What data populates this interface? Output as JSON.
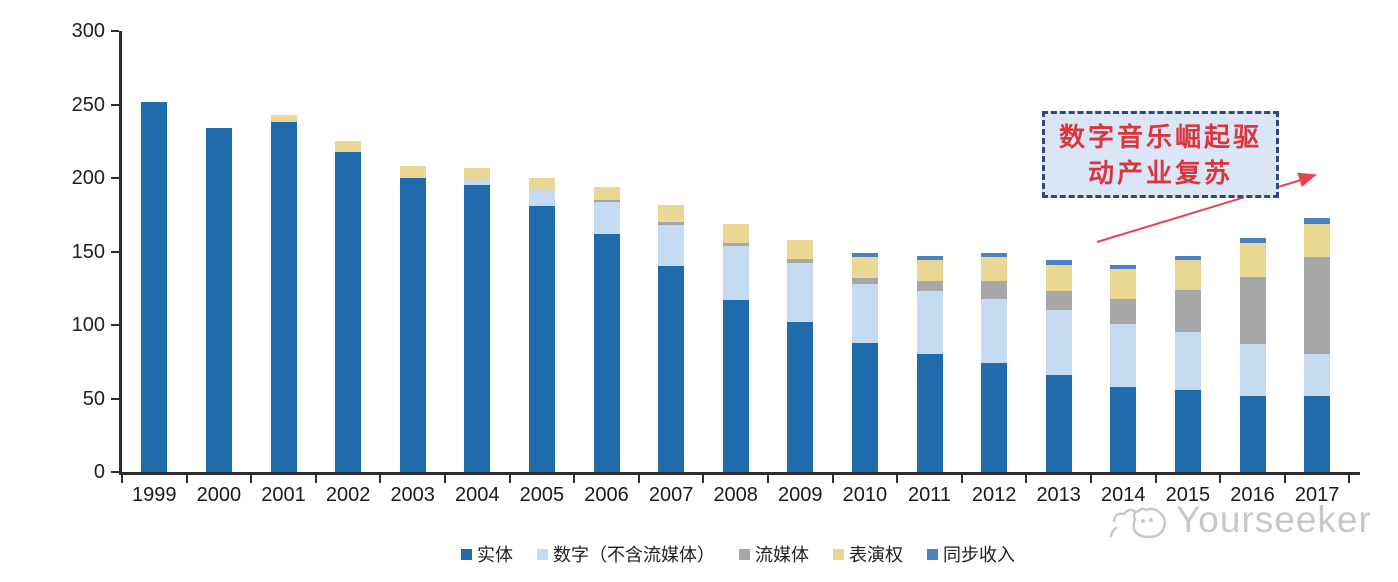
{
  "chart_data": {
    "type": "bar",
    "stacked": true,
    "title": "",
    "xlabel": "",
    "ylabel": "",
    "ylim": [
      0,
      300
    ],
    "yticks": [
      0,
      50,
      100,
      150,
      200,
      250,
      300
    ],
    "grid": false,
    "legend_position": "bottom",
    "categories": [
      "1999",
      "2000",
      "2001",
      "2002",
      "2003",
      "2004",
      "2005",
      "2006",
      "2007",
      "2008",
      "2009",
      "2010",
      "2011",
      "2012",
      "2013",
      "2014",
      "2015",
      "2016",
      "2017"
    ],
    "series": [
      {
        "key": "physical",
        "name": "实体",
        "color": "#1f6bab",
        "values": [
          252,
          234,
          238,
          218,
          200,
          195,
          181,
          162,
          140,
          117,
          102,
          88,
          80,
          74,
          66,
          58,
          56,
          52,
          52
        ]
      },
      {
        "key": "digital-excl-streaming",
        "name": "数字（不含流媒体）",
        "color": "#c5dbf1",
        "values": [
          0,
          0,
          0,
          0,
          0,
          4,
          11,
          22,
          28,
          37,
          40,
          40,
          43,
          44,
          44,
          43,
          39,
          35,
          28
        ]
      },
      {
        "key": "streaming",
        "name": "流媒体",
        "color": "#a7a7a7",
        "values": [
          0,
          0,
          0,
          0,
          0,
          0,
          0,
          1,
          2,
          2,
          3,
          4,
          7,
          12,
          13,
          17,
          29,
          46,
          66
        ]
      },
      {
        "key": "performance-rights",
        "name": "表演权",
        "color": "#ead794",
        "values": [
          0,
          0,
          5,
          7,
          8,
          8,
          8,
          9,
          12,
          13,
          13,
          14,
          14,
          16,
          18,
          20,
          20,
          23,
          23
        ]
      },
      {
        "key": "sync-revenue",
        "name": "同步收入",
        "color": "#4b82c3",
        "values": [
          0,
          0,
          0,
          0,
          0,
          0,
          0,
          0,
          0,
          0,
          0,
          3,
          3,
          3,
          3,
          3,
          3,
          3,
          4
        ]
      }
    ]
  },
  "annotation": {
    "line1": "数字音乐崛起驱",
    "line2": "动产业复苏",
    "text_color": "#d9363f",
    "border_color": "#33487a",
    "bg_color": "#dae6f5",
    "arrow_color": "#e8444e"
  },
  "watermark": {
    "text": "Yourseeker",
    "color": "#c8c8c8"
  }
}
